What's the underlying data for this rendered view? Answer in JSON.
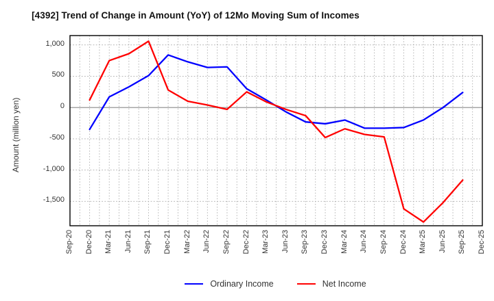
{
  "title": "[4392]  Trend of Change in Amount (YoY) of 12Mo Moving Sum of Incomes",
  "chart_data": {
    "type": "line",
    "title": "[4392]  Trend of Change in Amount (YoY) of 12Mo Moving Sum of Incomes",
    "xlabel": "",
    "ylabel": "Amount (million yen)",
    "categories": [
      "Sep-20",
      "Dec-20",
      "Mar-21",
      "Jun-21",
      "Sep-21",
      "Dec-21",
      "Mar-22",
      "Jun-22",
      "Sep-22",
      "Dec-22",
      "Mar-23",
      "Jun-23",
      "Sep-23",
      "Dec-23",
      "Mar-24",
      "Jun-24",
      "Sep-24",
      "Dec-24",
      "Mar-25",
      "Jun-25",
      "Sep-25",
      "Dec-25"
    ],
    "series": [
      {
        "name": "Ordinary Income",
        "color": "#0000ff",
        "values": [
          null,
          -350,
          170,
          330,
          510,
          840,
          730,
          640,
          650,
          300,
          120,
          -70,
          -230,
          -260,
          -200,
          -330,
          -330,
          -320,
          -200,
          0,
          240,
          null
        ]
      },
      {
        "name": "Net Income",
        "color": "#ff0000",
        "values": [
          null,
          120,
          750,
          860,
          1060,
          280,
          100,
          40,
          -30,
          250,
          90,
          -30,
          -130,
          -480,
          -340,
          -430,
          -470,
          -1620,
          -1830,
          -1520,
          -1160,
          null
        ]
      }
    ],
    "ylim": [
      -1890,
      1150
    ],
    "yticks": [
      {
        "value": 1000,
        "label": "1,000"
      },
      {
        "value": 500,
        "label": "500"
      },
      {
        "value": 0,
        "label": "0"
      },
      {
        "value": -500,
        "label": "-500"
      },
      {
        "value": -1000,
        "label": "-1,000"
      },
      {
        "value": -1500,
        "label": "-1,500"
      }
    ],
    "grid": "dotted major horizontal every 500; dotted vertical at quarter and half-quarter; solid gray zero line",
    "legend_position": "bottom-center"
  },
  "colors": {
    "ordinary_income": "#0000ff",
    "net_income": "#ff0000",
    "grid": "#aaaaaa",
    "zero_line": "#888888",
    "plot_border": "#000000",
    "title_text": "#111111",
    "tick_text": "#333333",
    "background": "#ffffff"
  }
}
